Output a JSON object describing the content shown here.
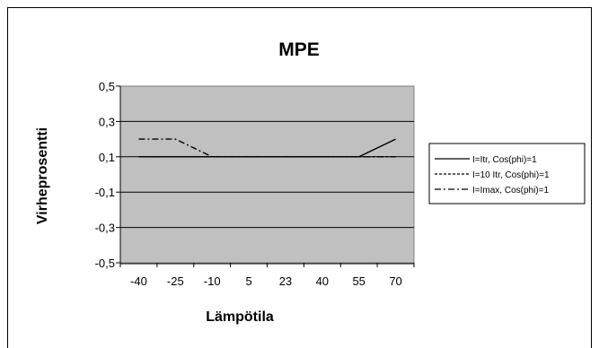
{
  "chart_data": {
    "type": "line",
    "title": "MPE",
    "xlabel": "Lämpötila",
    "ylabel": "Virheprosentti",
    "categories": [
      "-40",
      "-25",
      "-10",
      "5",
      "23",
      "40",
      "55",
      "70"
    ],
    "ylim": [
      -0.5,
      0.5
    ],
    "yticks": [
      "0,5",
      "0,3",
      "0,1",
      "-0,1",
      "-0,3",
      "-0,5"
    ],
    "ytick_values": [
      0.5,
      0.3,
      0.1,
      -0.1,
      -0.3,
      -0.5
    ],
    "grid": true,
    "legend_position": "right",
    "plot_background": "#c0c0c0",
    "series": [
      {
        "name": "I=Itr, Cos(phi)=1",
        "values": [
          0.1,
          0.1,
          0.1,
          0.1,
          0.1,
          0.1,
          0.1,
          0.2
        ],
        "dash": "solid"
      },
      {
        "name": "I=10 Itr, Cos(phi)=1",
        "values": [
          0.1,
          0.1,
          0.1,
          0.1,
          0.1,
          0.1,
          0.1,
          0.1
        ],
        "dash": "dashed"
      },
      {
        "name": "I=Imax, Cos(phi)=1",
        "values": [
          0.2,
          0.2,
          0.1,
          0.1,
          0.1,
          0.1,
          0.1,
          0.1
        ],
        "dash": "dashdot"
      }
    ]
  }
}
